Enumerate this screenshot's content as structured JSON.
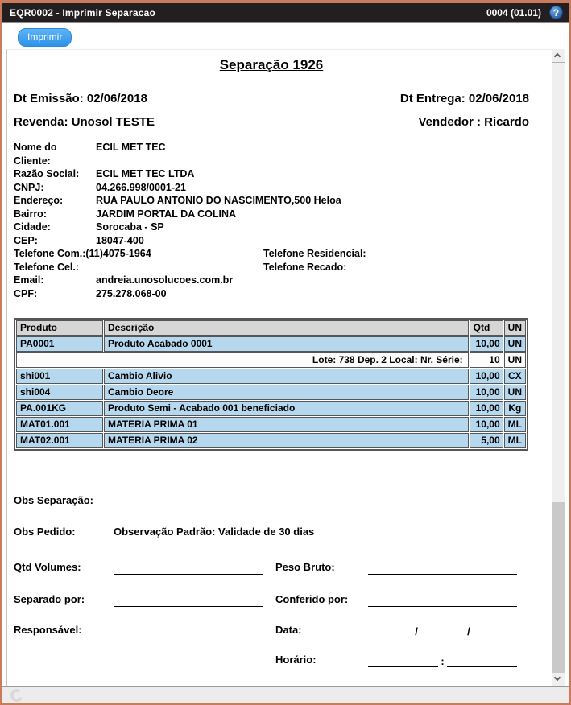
{
  "colors": {
    "window_border": "#c97b5c",
    "titlebar_bg": "#231f20",
    "accent_blue": "#2d93e9",
    "table_header_bg": "#d6d6d6",
    "table_row_bg": "#b5d8ee"
  },
  "titlebar": {
    "title": "EQR0002 - Imprimir Separacao",
    "version": "0004 (01.01)",
    "help": "?"
  },
  "toolbar": {
    "print_label": "Imprimir"
  },
  "doc": {
    "title": "Separação 1926",
    "dt_emissao": "Dt Emissão: 02/06/2018",
    "dt_entrega": "Dt Entrega: 02/06/2018",
    "revenda": "Revenda: Unosol TESTE",
    "vendedor": "Vendedor : Ricardo",
    "client": {
      "nome_label": "Nome do Cliente:",
      "nome": "ECIL MET TEC",
      "razao_label": "Razão Social:",
      "razao": "ECIL MET TEC LTDA",
      "cnpj_label": "CNPJ:",
      "cnpj": "04.266.998/0001-21",
      "endereco_label": "Endereço:",
      "endereco": "RUA PAULO ANTONIO DO NASCIMENTO,500 Heloa",
      "bairro_label": "Bairro:",
      "bairro": "JARDIM PORTAL DA COLINA",
      "cidade_label": "Cidade:",
      "cidade": "Sorocaba - SP",
      "cep_label": "CEP:",
      "cep": "18047-400",
      "tel_com_label": "Telefone Com.:",
      "tel_com": "(11)4075-1964",
      "tel_res_label": "Telefone Residencial:",
      "tel_cel_label": "Telefone Cel.:",
      "tel_recado_label": "Telefone Recado:",
      "email_label": "Email:",
      "email": "andreia.unosolucoes.com.br",
      "cpf_label": "CPF:",
      "cpf": "275.278.068-00"
    },
    "table": {
      "headers": {
        "produto": "Produto",
        "descricao": "Descrição",
        "qtd": "Qtd",
        "un": "UN"
      },
      "rows": [
        {
          "produto": "PA0001",
          "descricao": "Produto Acabado 0001",
          "qtd": "10,00",
          "un": "UN"
        },
        {
          "lote": "Lote: 738 Dep. 2 Local: Nr. Série:",
          "qtd": "10",
          "un": "UN"
        },
        {
          "produto": "shi001",
          "descricao": "Cambio Alivio",
          "qtd": "10,00",
          "un": "CX"
        },
        {
          "produto": "shi004",
          "descricao": "Cambio Deore",
          "qtd": "10,00",
          "un": "UN"
        },
        {
          "produto": "PA.001KG",
          "descricao": "Produto Semi - Acabado 001 beneficiado",
          "qtd": "10,00",
          "un": "Kg"
        },
        {
          "produto": "MAT01.001",
          "descricao": "MATERIA PRIMA 01",
          "qtd": "10,00",
          "un": "ML"
        },
        {
          "produto": "MAT02.001",
          "descricao": "MATERIA PRIMA 02",
          "qtd": "5,00",
          "un": "ML"
        }
      ]
    },
    "obs": {
      "sep_label": "Obs Separação:",
      "pedido_label": "Obs Pedido:",
      "pedido_value": "Observação Padrão: Validade de 30 dias"
    },
    "form": {
      "qtd_volumes": "Qtd Volumes:",
      "peso_bruto": "Peso Bruto:",
      "separado_por": "Separado por:",
      "conferido_por": "Conferido por:",
      "responsavel": "Responsável:",
      "data": "Data:",
      "horario": "Horário:",
      "data_sep": "/",
      "hora_sep": ":"
    }
  }
}
